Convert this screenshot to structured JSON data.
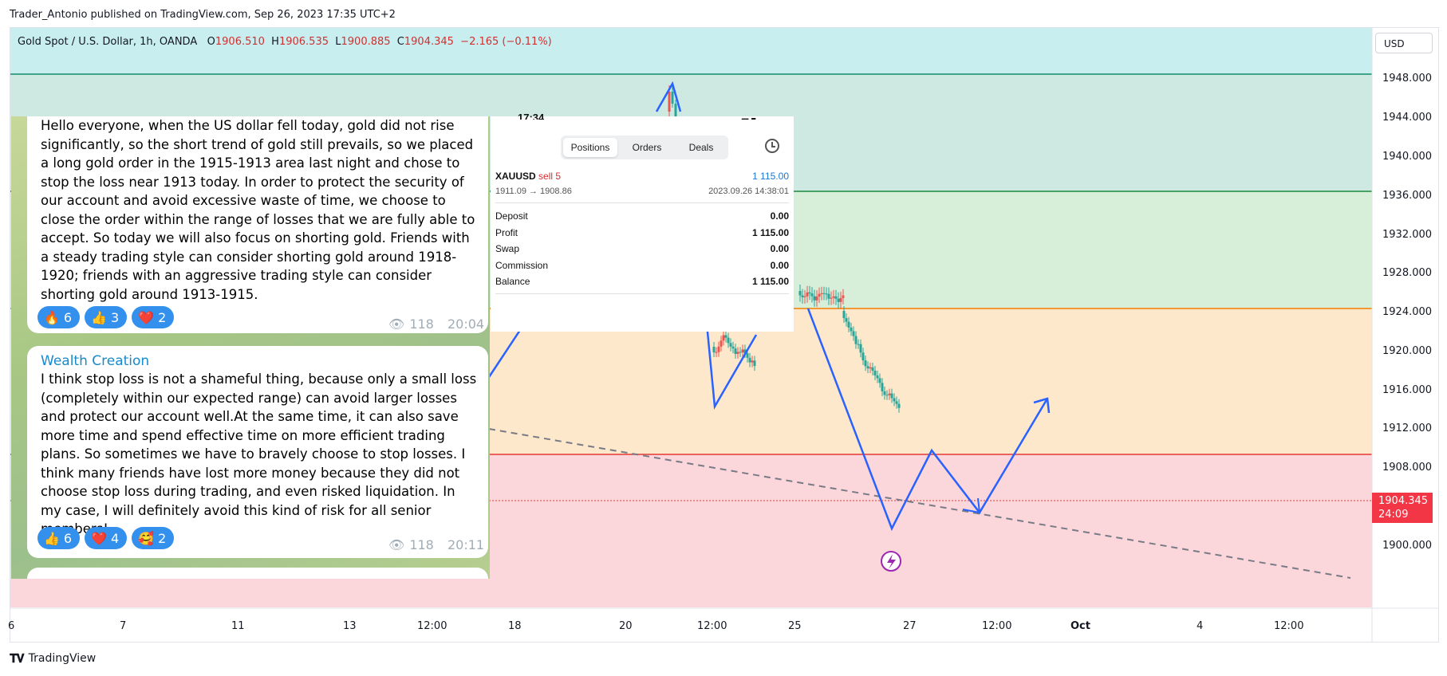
{
  "publish_line": "Trader_Antonio published on TradingView.com, Sep 26, 2023 17:35 UTC+2",
  "symbol": {
    "name": "Gold Spot / U.S. Dollar, 1h, OANDA",
    "o_label": "O",
    "o_value": "1906.510",
    "h_label": "H",
    "h_value": "1906.535",
    "l_label": "L",
    "l_value": "1900.885",
    "c_label": "C",
    "c_value": "1904.345",
    "change": "−2.165 (−0.11%)"
  },
  "currency": "USD",
  "price_axis": [
    "1948.000",
    "1944.000",
    "1940.000",
    "1936.000",
    "1932.000",
    "1928.000",
    "1924.000",
    "1920.000",
    "1916.000",
    "1912.000",
    "1908.000",
    "1904.000",
    "1900.000"
  ],
  "current_price": {
    "value": "1904.345",
    "countdown": "24:09"
  },
  "time_axis": [
    "6",
    "7",
    "11",
    "13",
    "12:00",
    "18",
    "20",
    "12:00",
    "25",
    "27",
    "12:00",
    "Oct",
    "4",
    "12:00"
  ],
  "time_axis_bold": "Oct",
  "brand": "TradingView",
  "colors": {
    "zone_top": "#c8eef0",
    "zone_green": "#d4eedd",
    "zone_orange": "#fde8cc",
    "zone_red": "#fbd7db",
    "line_green": "#1b8a3c",
    "line_orange": "#f57c00",
    "line_red": "#e53935",
    "drawing_blue": "#2962ff",
    "candle_red": "#ef5350",
    "candle_green": "#26a69a"
  },
  "telegram": {
    "message1": {
      "text": "Hello everyone, when the US dollar fell today, gold did not rise significantly, so the short trend of gold still prevails, so we placed a long gold order in the 1915-1913 area last night and chose to stop the loss near 1913 today. In order to protect the security of our account and avoid excessive waste of time, we choose to close the order within the range of losses that we are fully able to accept. So today we will also focus on shorting gold. Friends with a steady trading style can consider shorting gold around 1918-1920; friends with an aggressive trading style can consider shorting gold around 1913-1915.",
      "reactions": [
        {
          "emoji": "🔥",
          "count": "6"
        },
        {
          "emoji": "👍",
          "count": "3"
        },
        {
          "emoji": "❤️",
          "count": "2"
        }
      ],
      "views": "118",
      "time": "20:04"
    },
    "message2": {
      "author": "Wealth Creation",
      "text": "I think stop loss is not a shameful thing, because only a small loss (completely within our expected range) can avoid larger losses and protect our account well.At the same time, it can also save more time and spend effective time on more efficient trading plans. So sometimes we have to bravely choose to stop losses. I think many friends have lost more money because they did not choose stop loss during trading, and even risked liquidation. In my case, I will definitely avoid this kind of risk for all senior members!",
      "reactions": [
        {
          "emoji": "👍",
          "count": "6"
        },
        {
          "emoji": "❤️",
          "count": "4"
        },
        {
          "emoji": "🥰",
          "count": "2"
        }
      ],
      "views": "118",
      "time": "20:11"
    }
  },
  "mt5": {
    "status_time": "17:34",
    "tabs": [
      "Positions",
      "Orders",
      "Deals"
    ],
    "active_tab": "Positions",
    "position": {
      "symbol": "XAUUSD",
      "side": "sell 5",
      "profit": "1 115.00",
      "prices": "1911.09 → 1908.86",
      "datetime": "2023.09.26 14:38:01"
    },
    "summary": [
      {
        "label": "Deposit",
        "value": "0.00"
      },
      {
        "label": "Profit",
        "value": "1 115.00"
      },
      {
        "label": "Swap",
        "value": "0.00"
      },
      {
        "label": "Commission",
        "value": "0.00"
      },
      {
        "label": "Balance",
        "value": "1 115.00"
      }
    ]
  }
}
